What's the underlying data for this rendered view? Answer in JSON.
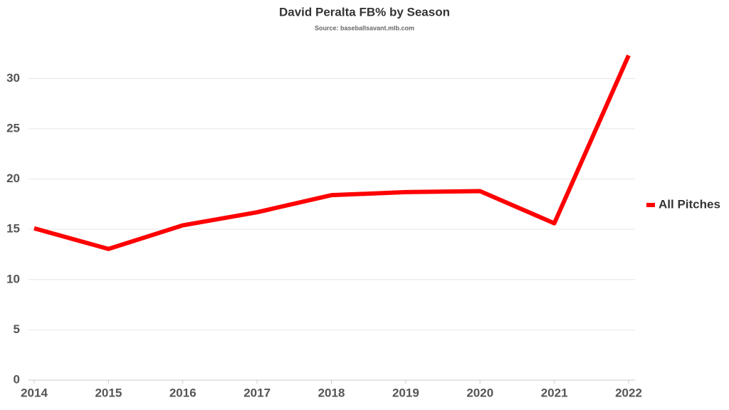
{
  "chart_data": {
    "type": "line",
    "title": "David Peralta FB% by Season",
    "subtitle": "Source: baseballsavant.mlb.com",
    "x": [
      2014,
      2015,
      2016,
      2017,
      2018,
      2019,
      2020,
      2021,
      2022
    ],
    "xlim": [
      2014,
      2022
    ],
    "xticks": [
      2014,
      2015,
      2016,
      2017,
      2018,
      2019,
      2020,
      2021,
      2022
    ],
    "series": [
      {
        "name": "All Pitches",
        "color": "#ff0000",
        "values": [
          15.1,
          13.05,
          15.4,
          16.7,
          18.4,
          18.7,
          18.8,
          15.6,
          32.3
        ]
      }
    ],
    "ylim": [
      0,
      33
    ],
    "yticks": [
      0,
      5,
      10,
      15,
      20,
      25,
      30
    ],
    "grid": true,
    "legend": "right"
  }
}
